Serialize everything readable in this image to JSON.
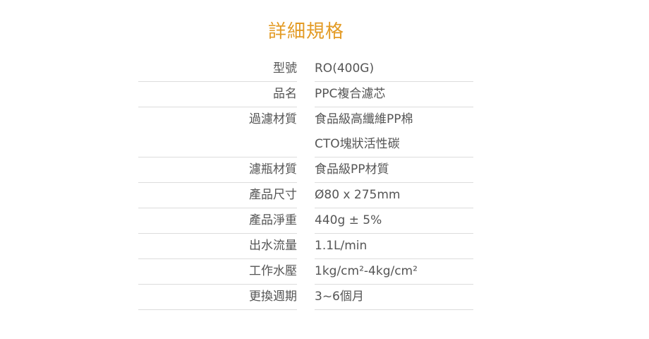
{
  "title": "詳細規格",
  "specs": [
    {
      "label": "型號",
      "values": [
        "RO(400G)"
      ]
    },
    {
      "label": "品名",
      "values": [
        "PPC複合濾芯"
      ]
    },
    {
      "label": "過濾材質",
      "values": [
        "食品級高纖維PP棉",
        "CTO塊狀活性碳"
      ]
    },
    {
      "label": "濾瓶材質",
      "values": [
        "食品級PP材質"
      ]
    },
    {
      "label": "產品尺寸",
      "values": [
        "Ø80 x 275mm"
      ]
    },
    {
      "label": "產品淨重",
      "values": [
        "440g ± 5%"
      ]
    },
    {
      "label": "出水流量",
      "values": [
        "1.1L/min"
      ]
    },
    {
      "label": "工作水壓",
      "values": [
        "1kg/cm²-4kg/cm²"
      ]
    },
    {
      "label": "更換週期",
      "values": [
        "3~6個月"
      ]
    }
  ]
}
